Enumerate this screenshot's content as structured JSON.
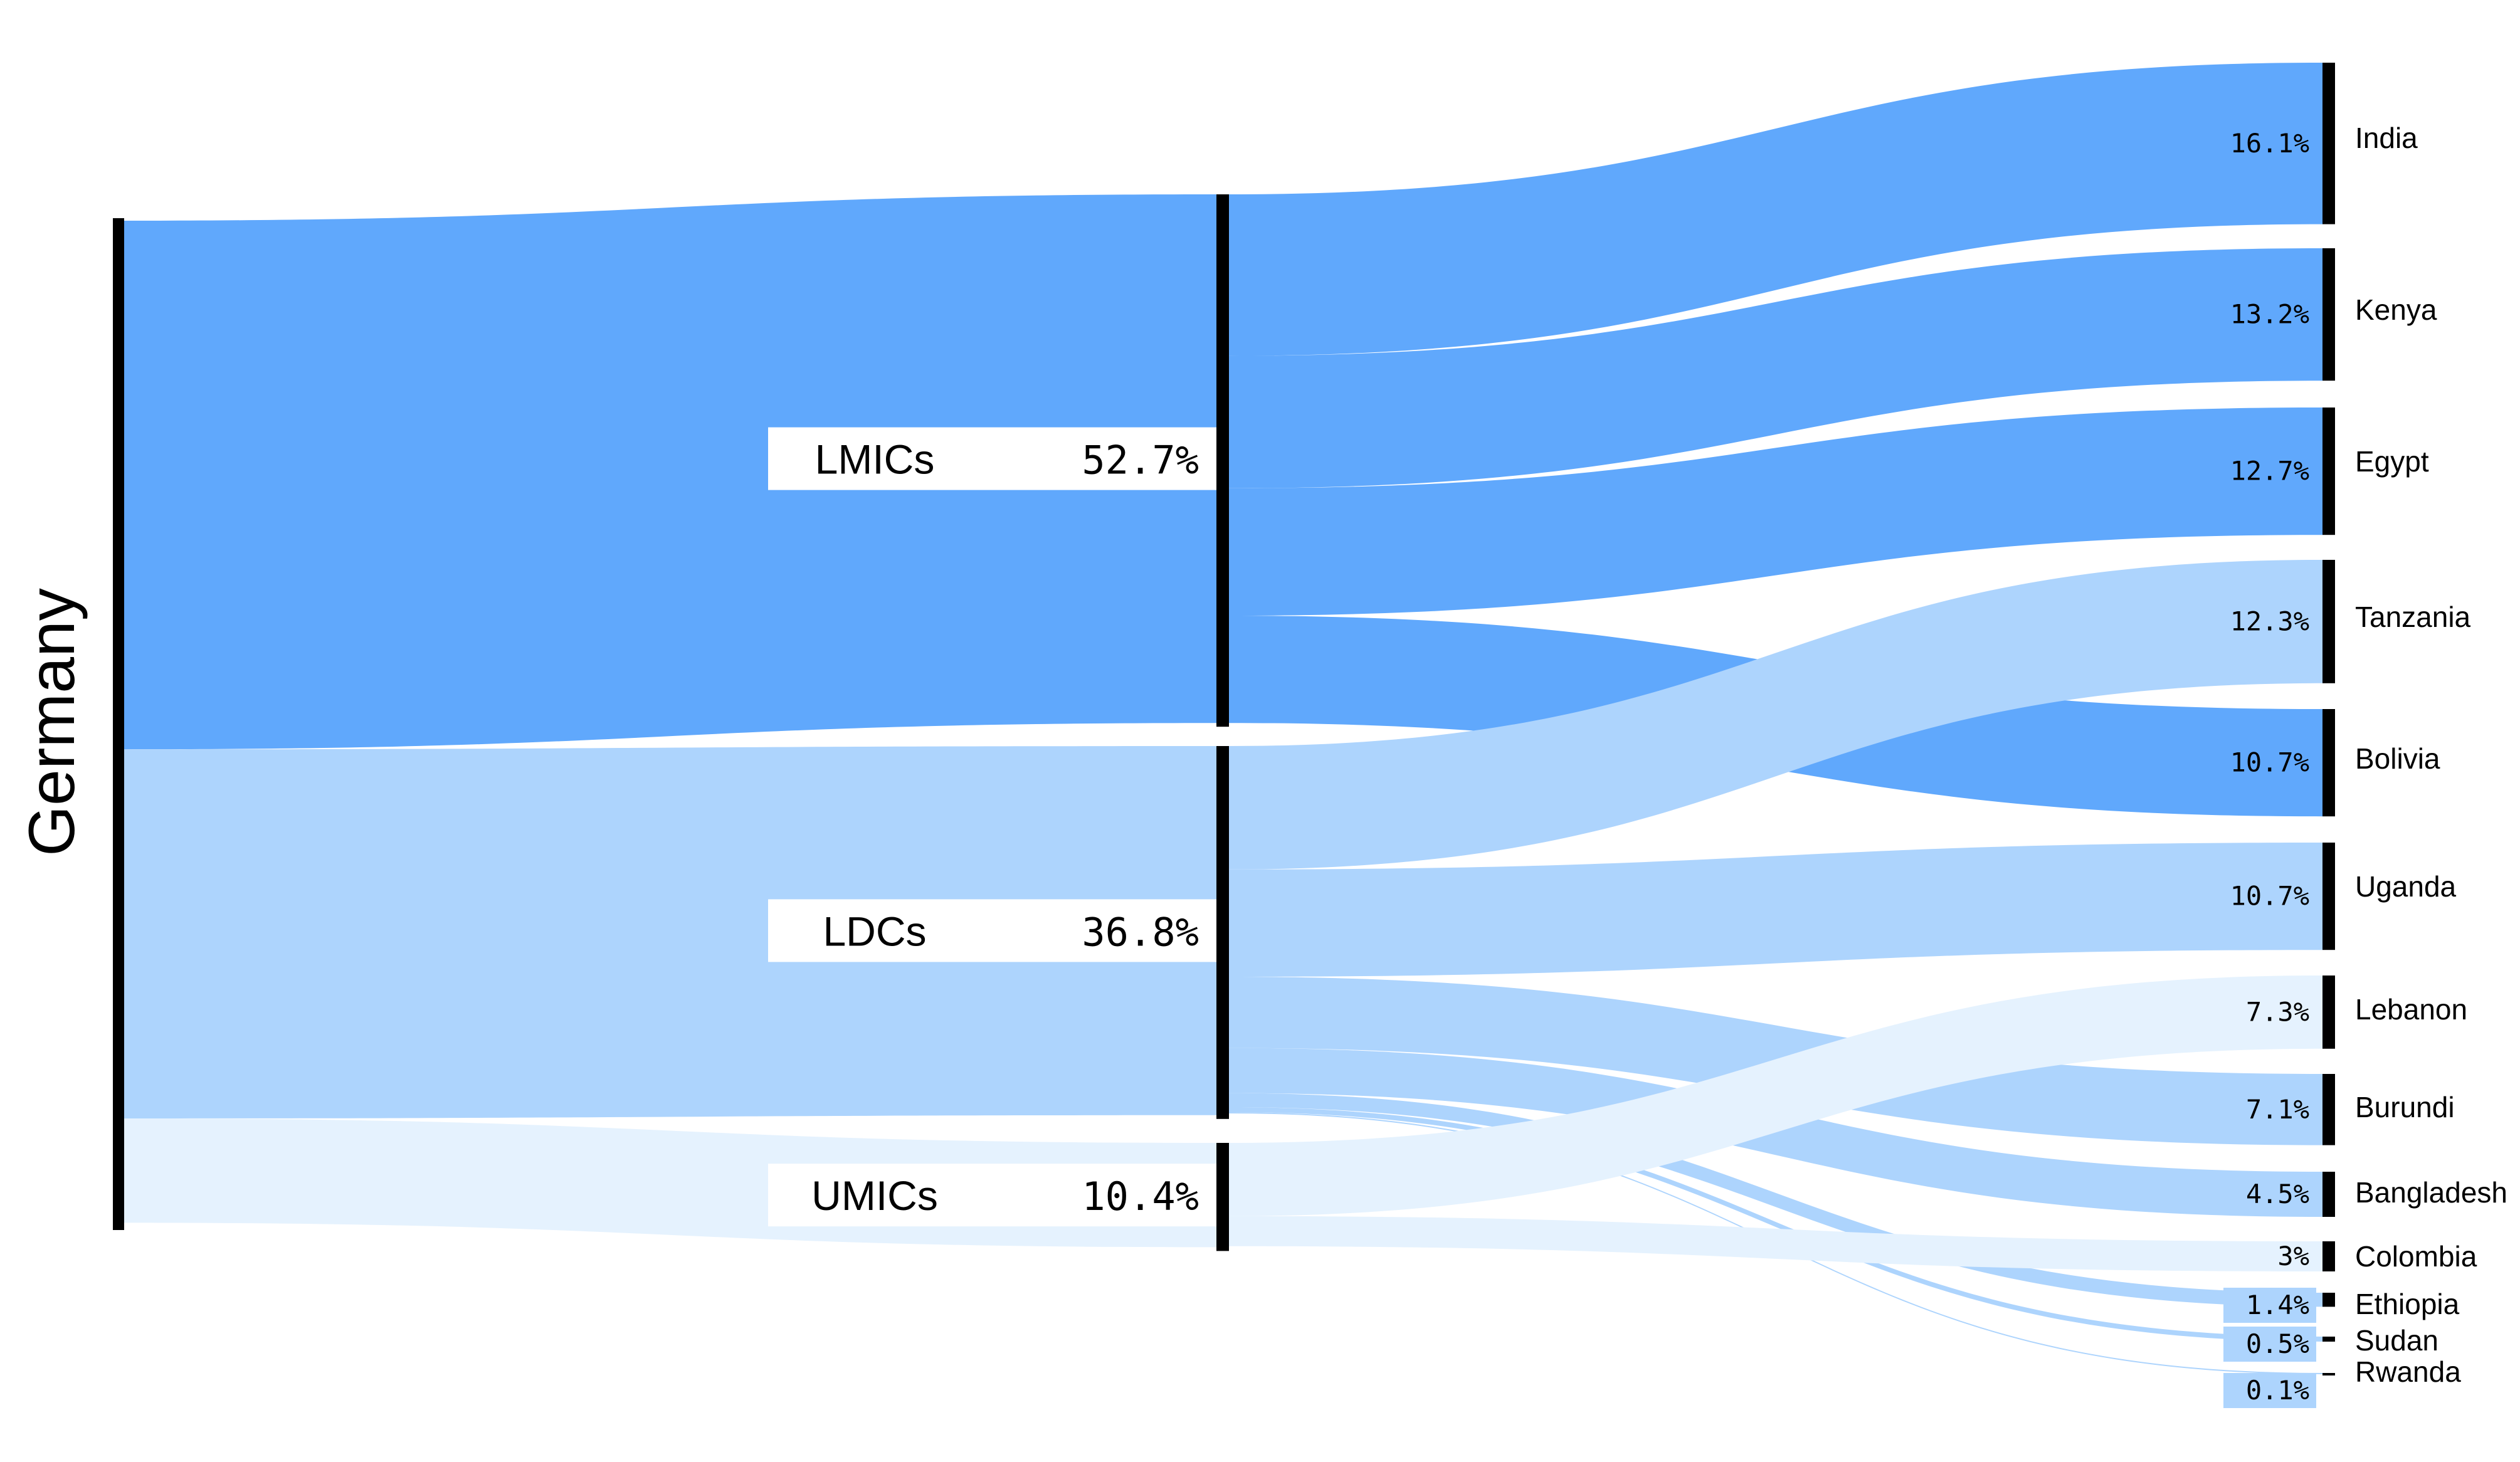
{
  "chart_data": {
    "type": "sankey",
    "source": {
      "label": "Germany",
      "value": 100
    },
    "groups": [
      {
        "label": "LMICs",
        "value_label": "52.7%",
        "value": 52.7,
        "color": "#60A8FC"
      },
      {
        "label": "LDCs",
        "value_label": "36.8%",
        "value": 36.8,
        "color": "#ADD4FD"
      },
      {
        "label": "UMICs",
        "value_label": "10.4%",
        "value": 10.4,
        "color": "#E5F2FE"
      }
    ],
    "countries": [
      {
        "label": "India",
        "value_label": "16.1%",
        "value": 16.1,
        "group": "LMICs"
      },
      {
        "label": "Kenya",
        "value_label": "13.2%",
        "value": 13.2,
        "group": "LMICs"
      },
      {
        "label": "Egypt",
        "value_label": "12.7%",
        "value": 12.7,
        "group": "LMICs"
      },
      {
        "label": "Tanzania",
        "value_label": "12.3%",
        "value": 12.3,
        "group": "LDCs"
      },
      {
        "label": "Bolivia",
        "value_label": "10.7%",
        "value": 10.7,
        "group": "LMICs"
      },
      {
        "label": "Uganda",
        "value_label": "10.7%",
        "value": 10.7,
        "group": "LDCs"
      },
      {
        "label": "Lebanon",
        "value_label": "7.3%",
        "value": 7.3,
        "group": "UMICs"
      },
      {
        "label": "Burundi",
        "value_label": "7.1%",
        "value": 7.1,
        "group": "LDCs"
      },
      {
        "label": "Bangladesh",
        "value_label": "4.5%",
        "value": 4.5,
        "group": "LDCs"
      },
      {
        "label": "Colombia",
        "value_label": "3%",
        "value": 3.0,
        "group": "UMICs"
      },
      {
        "label": "Ethiopia",
        "value_label": "1.4%",
        "value": 1.4,
        "group": "LDCs"
      },
      {
        "label": "Sudan",
        "value_label": "0.5%",
        "value": 0.5,
        "group": "LDCs"
      },
      {
        "label": "Rwanda",
        "value_label": "0.1%",
        "value": 0.1,
        "group": "LDCs"
      }
    ]
  }
}
